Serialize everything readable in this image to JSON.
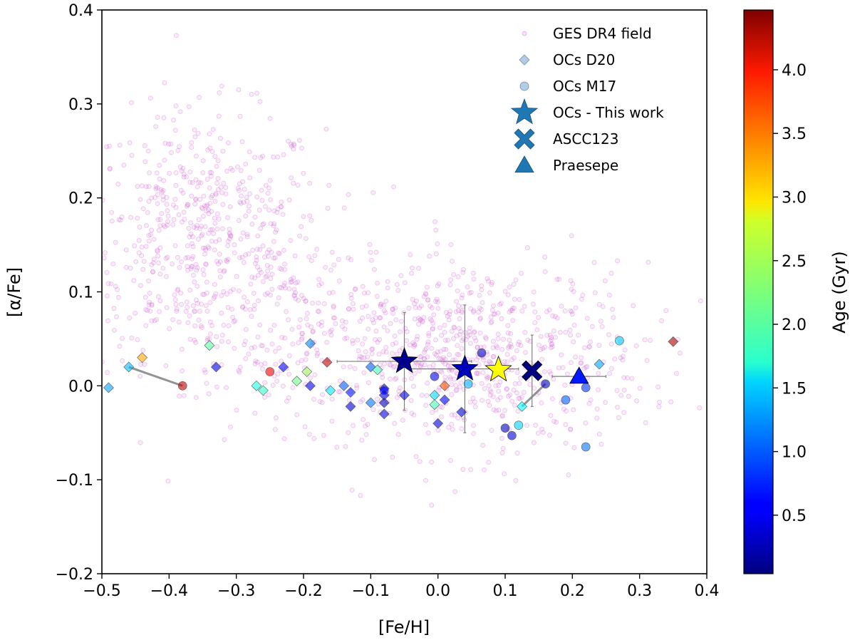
{
  "chart_data": {
    "type": "scatter",
    "xlabel": "[Fe/H]",
    "ylabel": "[α/Fe]",
    "xlim": [
      -0.5,
      0.4
    ],
    "ylim": [
      -0.2,
      0.4
    ],
    "xticks": [
      -0.5,
      -0.4,
      -0.3,
      -0.2,
      -0.1,
      0.0,
      0.1,
      0.2,
      0.3,
      0.4
    ],
    "xtick_labels": [
      "−0.5",
      "−0.4",
      "−0.3",
      "−0.2",
      "−0.1",
      "0.0",
      "0.1",
      "0.2",
      "0.3",
      "0.4"
    ],
    "yticks": [
      -0.2,
      -0.1,
      0.0,
      0.1,
      0.2,
      0.3,
      0.4
    ],
    "ytick_labels": [
      "−0.2",
      "−0.1",
      "0.0",
      "0.1",
      "0.2",
      "0.3",
      "0.4"
    ],
    "colorbar": {
      "label": "Age (Gyr)",
      "colormap": "jet",
      "range": [
        0.04,
        4.47
      ],
      "ticks": [
        0.5,
        1.0,
        1.5,
        2.0,
        2.5,
        3.0,
        3.5,
        4.0
      ],
      "tick_labels": [
        "0.5",
        "1.0",
        "1.5",
        "2.0",
        "2.5",
        "3.0",
        "3.5",
        "4.0"
      ]
    },
    "legend": {
      "position": "top-right",
      "entries": [
        {
          "label": "GES DR4 field",
          "marker": "dot",
          "color": "#e3a7e6"
        },
        {
          "label": "OCs D20",
          "marker": "diamond",
          "color": "#9fbfdc"
        },
        {
          "label": "OCs M17",
          "marker": "circle",
          "color": "#9fbfdc"
        },
        {
          "label": "OCs - This work",
          "marker": "star",
          "color": "#1f77b4"
        },
        {
          "label": "ASCC123",
          "marker": "x",
          "color": "#1f77b4"
        },
        {
          "label": "Praesepe",
          "marker": "triangle",
          "color": "#1f77b4"
        }
      ]
    },
    "field_sample": {
      "name": "GES DR4 field",
      "color": "#cc66cc",
      "count": 1500,
      "clusters": [
        {
          "cx": -0.35,
          "cy": 0.16,
          "sx": 0.09,
          "sy": 0.065,
          "weight": 0.38
        },
        {
          "cx": 0.05,
          "cy": 0.03,
          "sx": 0.13,
          "sy": 0.05,
          "weight": 0.47
        },
        {
          "cx": -0.2,
          "cy": 0.06,
          "sx": 0.12,
          "sy": 0.05,
          "weight": 0.15
        }
      ]
    },
    "series": [
      {
        "name": "OCs D20",
        "marker": "diamond",
        "points": [
          {
            "x": -0.49,
            "y": -0.002,
            "age": 1.3
          },
          {
            "x": -0.46,
            "y": 0.02,
            "age": 1.4
          },
          {
            "x": -0.44,
            "y": 0.03,
            "age": 3.2
          },
          {
            "x": -0.34,
            "y": 0.043,
            "age": 2.1
          },
          {
            "x": -0.33,
            "y": 0.02,
            "age": 0.5
          },
          {
            "x": -0.27,
            "y": 0.0,
            "age": 1.8
          },
          {
            "x": -0.26,
            "y": -0.005,
            "age": 1.9
          },
          {
            "x": -0.23,
            "y": 0.02,
            "age": 0.6
          },
          {
            "x": -0.21,
            "y": 0.005,
            "age": 2.2
          },
          {
            "x": -0.195,
            "y": 0.015,
            "age": 2.4
          },
          {
            "x": -0.19,
            "y": 0.045,
            "age": 1.2
          },
          {
            "x": -0.19,
            "y": 0.0,
            "age": 0.5
          },
          {
            "x": -0.165,
            "y": 0.025,
            "age": 4.2
          },
          {
            "x": -0.16,
            "y": -0.005,
            "age": 1.6
          },
          {
            "x": -0.14,
            "y": 0.0,
            "age": 1.0
          },
          {
            "x": -0.13,
            "y": -0.022,
            "age": 0.4
          },
          {
            "x": -0.13,
            "y": -0.007,
            "age": 0.7
          },
          {
            "x": -0.1,
            "y": -0.018,
            "age": 1.1
          },
          {
            "x": -0.1,
            "y": 0.02,
            "age": 1.0
          },
          {
            "x": -0.09,
            "y": 0.017,
            "age": 2.0
          },
          {
            "x": -0.08,
            "y": -0.003,
            "age": 0.6
          },
          {
            "x": -0.08,
            "y": -0.01,
            "age": 0.5
          },
          {
            "x": -0.08,
            "y": -0.018,
            "age": 0.3
          },
          {
            "x": -0.08,
            "y": -0.03,
            "age": 0.5
          },
          {
            "x": -0.05,
            "y": -0.01,
            "age": 0.5
          },
          {
            "x": -0.005,
            "y": -0.01,
            "age": 1.6
          },
          {
            "x": -0.005,
            "y": -0.02,
            "age": 2.0
          },
          {
            "x": 0.0,
            "y": -0.04,
            "age": 0.4
          },
          {
            "x": 0.01,
            "y": 0.0,
            "age": 3.6
          },
          {
            "x": 0.01,
            "y": -0.015,
            "age": 0.6
          },
          {
            "x": 0.035,
            "y": -0.028,
            "age": 0.4
          },
          {
            "x": 0.125,
            "y": -0.022,
            "age": 1.7
          },
          {
            "x": 0.24,
            "y": 0.023,
            "age": 1.3
          },
          {
            "x": 0.35,
            "y": 0.047,
            "age": 4.3
          }
        ]
      },
      {
        "name": "OCs M17",
        "marker": "circle",
        "points": [
          {
            "x": -0.38,
            "y": 0.0,
            "age": 4.2
          },
          {
            "x": -0.25,
            "y": 0.015,
            "age": 4.0
          },
          {
            "x": -0.08,
            "y": -0.005,
            "age": 0.6
          },
          {
            "x": -0.005,
            "y": 0.01,
            "age": 0.5
          },
          {
            "x": 0.045,
            "y": 0.002,
            "age": 1.4
          },
          {
            "x": 0.065,
            "y": 0.035,
            "age": 0.3
          },
          {
            "x": 0.1,
            "y": -0.045,
            "age": 0.3
          },
          {
            "x": 0.11,
            "y": -0.053,
            "age": 0.4
          },
          {
            "x": 0.12,
            "y": -0.042,
            "age": 1.5
          },
          {
            "x": 0.16,
            "y": 0.002,
            "age": 0.3
          },
          {
            "x": 0.19,
            "y": -0.015,
            "age": 1.0
          },
          {
            "x": 0.22,
            "y": -0.002,
            "age": 0.8
          },
          {
            "x": 0.22,
            "y": -0.065,
            "age": 1.1
          },
          {
            "x": 0.27,
            "y": 0.048,
            "age": 1.5
          }
        ]
      },
      {
        "name": "OCs - This work",
        "marker": "star",
        "points": [
          {
            "x": -0.05,
            "y": 0.026,
            "age": 0.1,
            "xerr": 0.1,
            "yerr": 0.052
          },
          {
            "x": 0.04,
            "y": 0.018,
            "age": 0.3,
            "xerr": 0.08,
            "yerr": 0.068
          },
          {
            "x": 0.09,
            "y": 0.017,
            "age": 2.8,
            "xerr": 0.0,
            "yerr": 0.0
          }
        ]
      },
      {
        "name": "ASCC123",
        "marker": "x",
        "points": [
          {
            "x": 0.14,
            "y": 0.016,
            "age": 0.05,
            "xerr": 0.0,
            "yerr": 0.038
          }
        ]
      },
      {
        "name": "Praesepe",
        "marker": "triangle",
        "points": [
          {
            "x": 0.21,
            "y": 0.01,
            "age": 0.7,
            "xerr": 0.04,
            "yerr": 0.0
          }
        ]
      }
    ],
    "connectors": [
      {
        "x1": -0.46,
        "y1": 0.02,
        "x2": -0.38,
        "y2": 0.0
      },
      {
        "x1": 0.125,
        "y1": -0.022,
        "x2": 0.16,
        "y2": 0.002
      }
    ]
  }
}
